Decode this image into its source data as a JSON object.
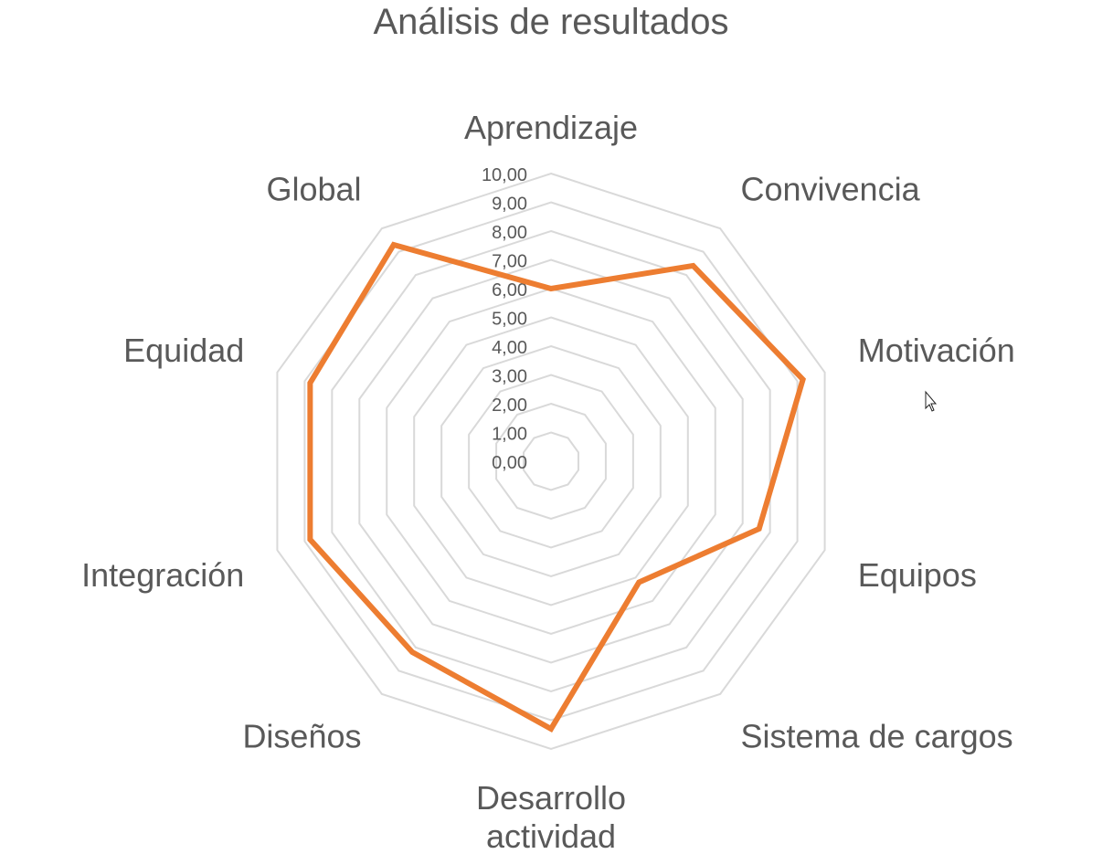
{
  "chart_data": {
    "type": "radar",
    "title": "Análisis de resultados",
    "categories": [
      "Aprendizaje",
      "Convivencia",
      "Motivación",
      "Equipos",
      "Sistema de cargos",
      "Desarrollo actividad",
      "Diseños",
      "Integración",
      "Equidad",
      "Global"
    ],
    "category_display": [
      [
        "Aprendizaje"
      ],
      [
        "Convivencia"
      ],
      [
        "Motivación"
      ],
      [
        "Equipos"
      ],
      [
        "Sistema de cargos"
      ],
      [
        "Desarrollo",
        "actividad"
      ],
      [
        "Diseños"
      ],
      [
        "Integración"
      ],
      [
        "Equidad"
      ],
      [
        "Global"
      ]
    ],
    "series": [
      {
        "values": [
          6.0,
          8.4,
          9.2,
          7.6,
          5.2,
          9.3,
          8.2,
          8.8,
          8.8,
          9.3
        ],
        "color": "#ED7D31"
      }
    ],
    "rlim": [
      0,
      10
    ],
    "ticks": [
      "0,00",
      "1,00",
      "2,00",
      "3,00",
      "4,00",
      "5,00",
      "6,00",
      "7,00",
      "8,00",
      "9,00",
      "10,00"
    ],
    "grid": true,
    "legend": "none"
  },
  "colors": {
    "grid": "#d9d9d9",
    "text": "#595959",
    "series": "#ED7D31"
  }
}
